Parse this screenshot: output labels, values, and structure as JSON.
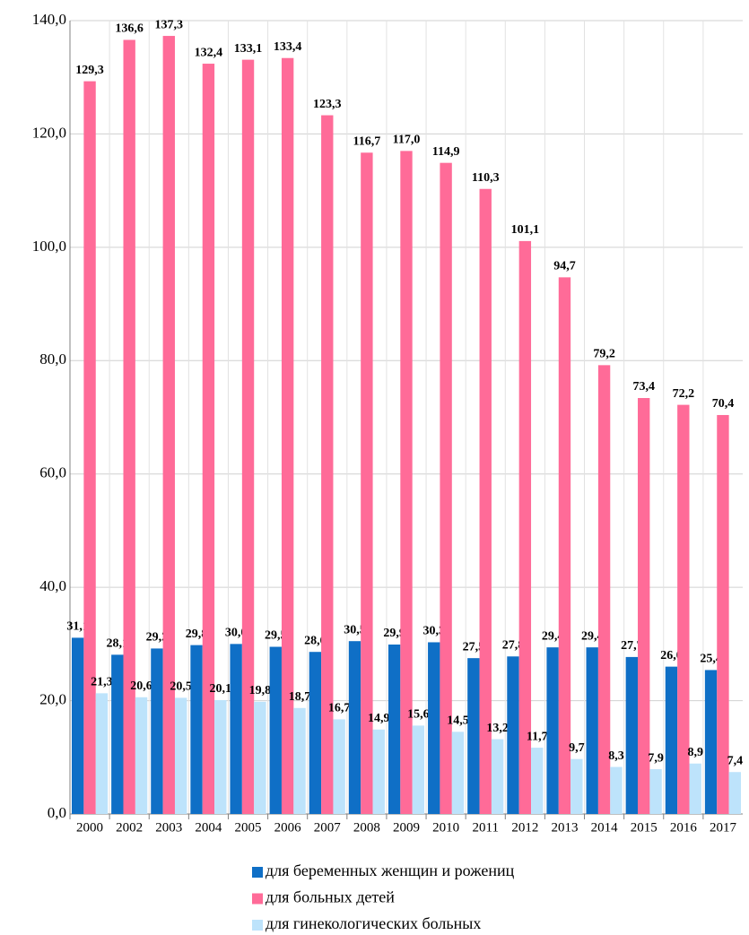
{
  "chart_data": {
    "type": "bar",
    "categories": [
      "2000",
      "2002",
      "2003",
      "2004",
      "2005",
      "2006",
      "2007",
      "2008",
      "2009",
      "2010",
      "2011",
      "2012",
      "2013",
      "2014",
      "2015",
      "2016",
      "2017"
    ],
    "series": [
      {
        "name": "для беременных женщин и рожениц",
        "color": "#0f6fc6",
        "values": [
          31.1,
          28.1,
          29.2,
          29.8,
          30.0,
          29.5,
          28.6,
          30.5,
          29.9,
          30.3,
          27.5,
          27.8,
          29.4,
          29.4,
          27.7,
          26.0,
          25.4
        ],
        "value_labels": [
          "31,1",
          "28,1",
          "29,2",
          "29,8",
          "30,0",
          "29,5",
          "28,6",
          "30,5",
          "29,9",
          "30,3",
          "27,5",
          "27,8",
          "29,4",
          "29,4",
          "27,7",
          "26,0",
          "25,4"
        ]
      },
      {
        "name": "для больных детей",
        "color": "#ff6b98",
        "values": [
          129.3,
          136.6,
          137.3,
          132.4,
          133.1,
          133.4,
          123.3,
          116.7,
          117.0,
          114.9,
          110.3,
          101.1,
          94.7,
          79.2,
          73.4,
          72.2,
          70.4
        ],
        "value_labels": [
          "129,3",
          "136,6",
          "137,3",
          "132,4",
          "133,1",
          "133,4",
          "123,3",
          "116,7",
          "117,0",
          "114,9",
          "110,3",
          "101,1",
          "94,7",
          "79,2",
          "73,4",
          "72,2",
          "70,4"
        ]
      },
      {
        "name": "для гинекологических больных",
        "color": "#bde3fb",
        "values": [
          21.3,
          20.6,
          20.5,
          20.1,
          19.8,
          18.7,
          16.7,
          14.9,
          15.6,
          14.5,
          13.2,
          11.7,
          9.7,
          8.3,
          7.9,
          8.9,
          7.4
        ],
        "value_labels": [
          "21,3",
          "20,6",
          "20,5",
          "20,1",
          "19,8",
          "18,7",
          "16,7",
          "14,9",
          "15,6",
          "14,5",
          "13,2",
          "11,7",
          "9,7",
          "8,3",
          "7,9",
          "8,9",
          "7,4"
        ]
      }
    ],
    "ylim": [
      0,
      140
    ],
    "yticks": [
      {
        "value": 0,
        "label": "0,0"
      },
      {
        "value": 20,
        "label": "20,0"
      },
      {
        "value": 40,
        "label": "40,0"
      },
      {
        "value": 60,
        "label": "60,0"
      },
      {
        "value": 80,
        "label": "80,0"
      },
      {
        "value": 100,
        "label": "100,0"
      },
      {
        "value": 120,
        "label": "120,0"
      },
      {
        "value": 140,
        "label": "140,0"
      }
    ],
    "grid": true,
    "legend": "bottom"
  }
}
